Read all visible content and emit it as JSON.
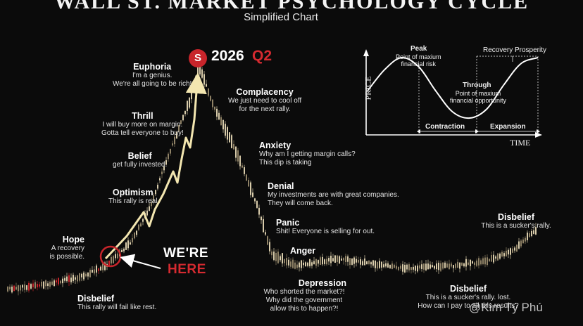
{
  "header": {
    "title": "WALL ST. MARKET PSYCHOLOGY CYCLE",
    "subtitle": "Simplified Chart"
  },
  "marker": {
    "badge": "S",
    "year": "2026",
    "quarter": "Q2",
    "here_line1": "WE'RE",
    "here_line2": "HERE"
  },
  "phases": [
    {
      "name": "Disbelief",
      "quote": "This rally will fail like rest."
    },
    {
      "name": "Hope",
      "quote": "A recovery\nis possible."
    },
    {
      "name": "Optimism",
      "quote": "This rally is real"
    },
    {
      "name": "Belief",
      "quote": "get fully invested."
    },
    {
      "name": "Thrill",
      "quote": "I will buy more on margin.\nGotta tell everyone to buy!"
    },
    {
      "name": "Euphoria",
      "quote": "I'm a genius.\nWe're all going to be rich!"
    },
    {
      "name": "Complacency",
      "quote": "We just need to cool off\nfor the next rally."
    },
    {
      "name": "Anxiety",
      "quote": "Why am I getting margin calls?\nThis dip is taking"
    },
    {
      "name": "Denial",
      "quote": "My investments are with great companies.\nThey will come back."
    },
    {
      "name": "Panic",
      "quote": "Shit! Everyone is selling for out."
    },
    {
      "name": "Anger",
      "quote": ""
    },
    {
      "name": "Depression",
      "quote": "Who shorted the market?!\nWhy did the government\nallow this to happen?!"
    },
    {
      "name": "Disbelief",
      "quote": "This is a sucker's rally. lost.\nHow can I pay to all this results?"
    },
    {
      "name": "Disbelief",
      "quote": "This is a sucker's rally."
    }
  ],
  "inset": {
    "y_axis": "PRICE",
    "x_axis": "TIME",
    "peak": "Peak",
    "peak_note": "Point of maxium\nfinancial risk",
    "trough": "Through",
    "trough_note": "Point of maxium\nfinancial opportunity",
    "recovery": "Recovery",
    "prosperity": "Prosperity",
    "contraction": "Contraction",
    "expansion": "Expansion"
  },
  "watermark": "@Kim Tý Phú",
  "colors": {
    "background": "#0b0b0b",
    "candle_up": "#d8cbaa",
    "candle_down": "#8f8266",
    "candle_red": "#c8252b",
    "arrow": "#f3e6b0",
    "accent_red": "#d52a30"
  },
  "chart_data": {
    "type": "line",
    "y_axis_labeled": false,
    "x_axis_labeled": false,
    "grid": false,
    "x": [
      0,
      1,
      2,
      3,
      4,
      5,
      6,
      7,
      8,
      9,
      10,
      11,
      12,
      13,
      14,
      15,
      16,
      17,
      18,
      19,
      20
    ],
    "series": [
      {
        "values": [
          5,
          7,
          10,
          15,
          25,
          40,
          60,
          75,
          85,
          100,
          85,
          60,
          40,
          20,
          15,
          18,
          14,
          15,
          17,
          22,
          30
        ]
      }
    ],
    "inset_series": {
      "type": "line",
      "x": [
        0,
        1,
        2,
        3,
        4,
        5,
        6,
        7,
        8,
        9,
        10
      ],
      "values": [
        0.45,
        0.8,
        1.0,
        0.85,
        0.45,
        0.1,
        0.0,
        0.15,
        0.55,
        0.9,
        1.0
      ]
    }
  }
}
